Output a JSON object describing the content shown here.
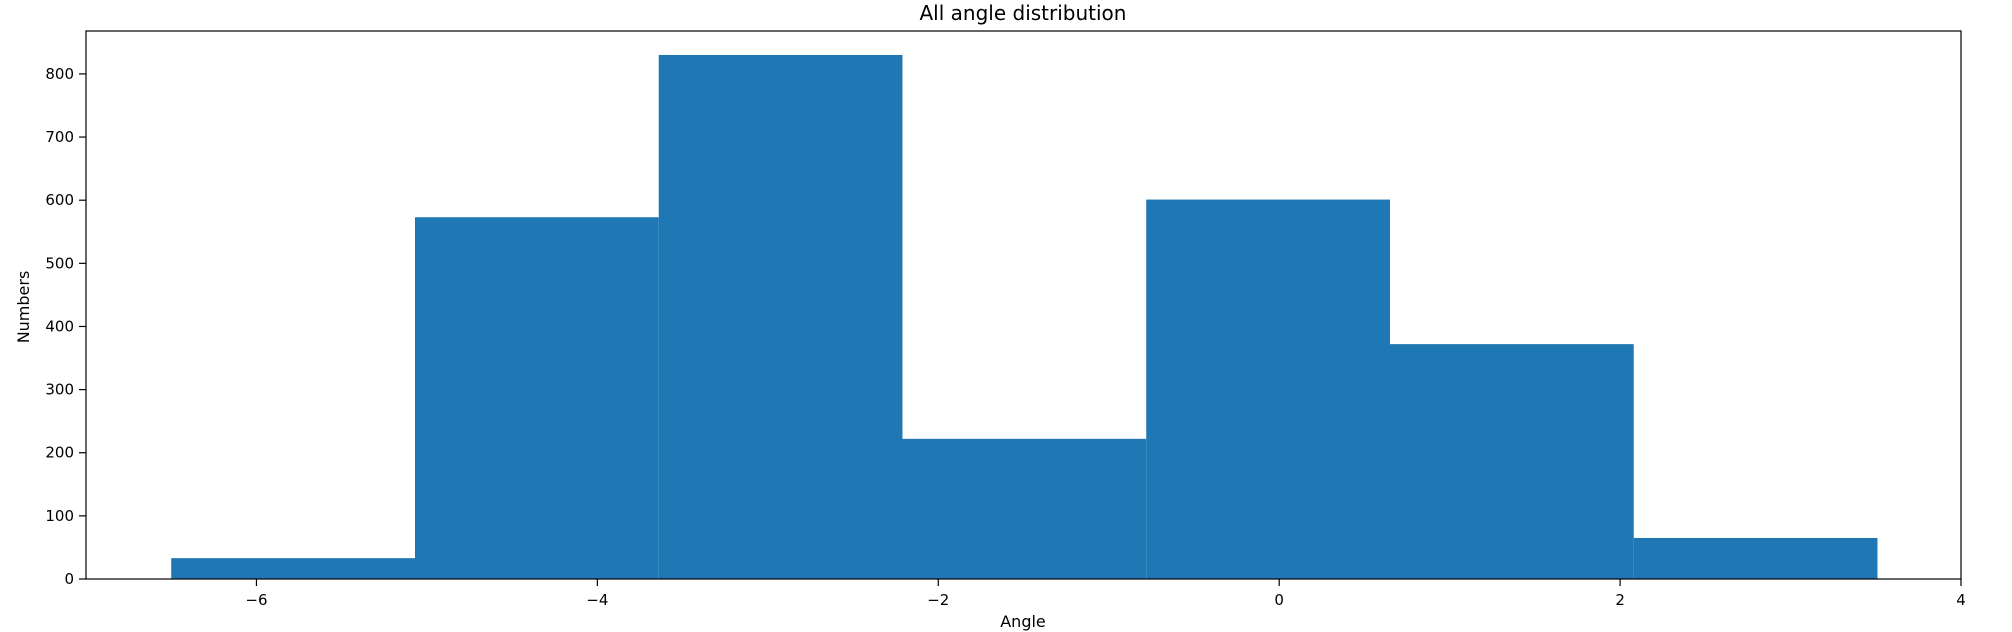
{
  "chart_data": {
    "type": "bar",
    "title": "All angle distribution",
    "xlabel": "Angle",
    "ylabel": "Numbers",
    "bins": [
      {
        "x0": -6.5,
        "x1": -5.07,
        "value": 33
      },
      {
        "x0": -5.07,
        "x1": -3.64,
        "value": 573
      },
      {
        "x0": -3.64,
        "x1": -2.21,
        "value": 830
      },
      {
        "x0": -2.21,
        "x1": -0.78,
        "value": 222
      },
      {
        "x0": -0.78,
        "x1": 0.65,
        "value": 601
      },
      {
        "x0": 0.65,
        "x1": 2.08,
        "value": 372
      },
      {
        "x0": 2.08,
        "x1": 3.51,
        "value": 65
      }
    ],
    "xlim": [
      -7,
      4
    ],
    "ylim": [
      0,
      868
    ],
    "xticks": [
      -6,
      -4,
      -2,
      0,
      2,
      4
    ],
    "yticks": [
      0,
      100,
      200,
      300,
      400,
      500,
      600,
      700,
      800
    ],
    "grid": false,
    "bar_color": "#1f77b4"
  }
}
